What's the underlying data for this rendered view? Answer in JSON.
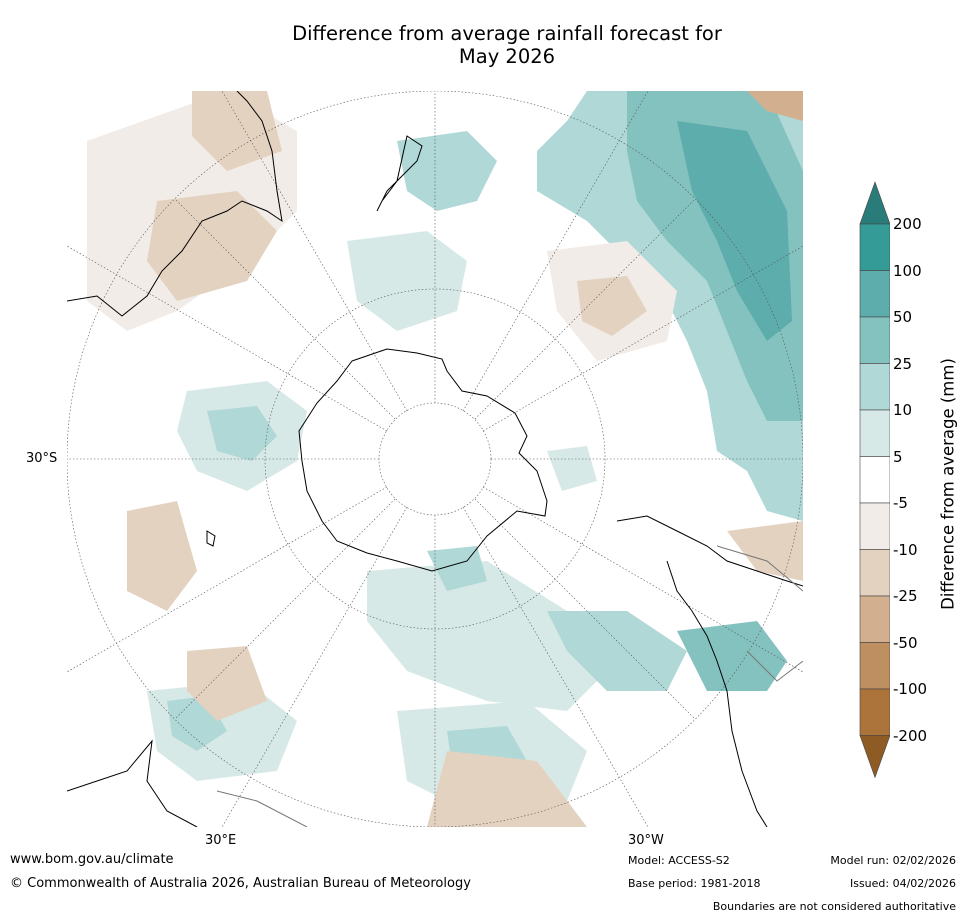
{
  "title": {
    "line1": "Difference from average rainfall forecast for",
    "line2": "May 2026"
  },
  "map": {
    "projection": "south-polar-stereographic",
    "graticule_labels": {
      "lat_30s": "30°S",
      "lon_30e": "30°E",
      "lon_30w": "30°W"
    }
  },
  "legend": {
    "title": "Difference from average (mm)",
    "tick_labels": [
      "200",
      "100",
      "50",
      "25",
      "10",
      "5",
      "-5",
      "-10",
      "-25",
      "-50",
      "-100",
      "-200"
    ],
    "colors": {
      "over": "#2a7c7a",
      "b100_200": "#349b97",
      "b50_100": "#5cadab",
      "b25_50": "#84c2c0",
      "b10_25": "#afd8d6",
      "b5_10": "#d7e9e7",
      "neutral": "#ffffff",
      "bm10_m5": "#f1ece7",
      "bm25_m10": "#e4d2c1",
      "bm50_m25": "#d2b08f",
      "bm100_m50": "#bd8f61",
      "bm200_m100": "#ac743a",
      "under": "#8f5b25"
    }
  },
  "footer": {
    "url": "www.bom.gov.au/climate",
    "copyright": "© Commonwealth of Australia 2026, Australian Bureau of Meteorology",
    "model": "Model: ACCESS-S2",
    "base_period": "Base period: 1981-2018",
    "model_run": "Model run: 02/02/2026",
    "issued": "Issued: 04/02/2026",
    "disclaimer": "Boundaries are not considered authoritative"
  }
}
